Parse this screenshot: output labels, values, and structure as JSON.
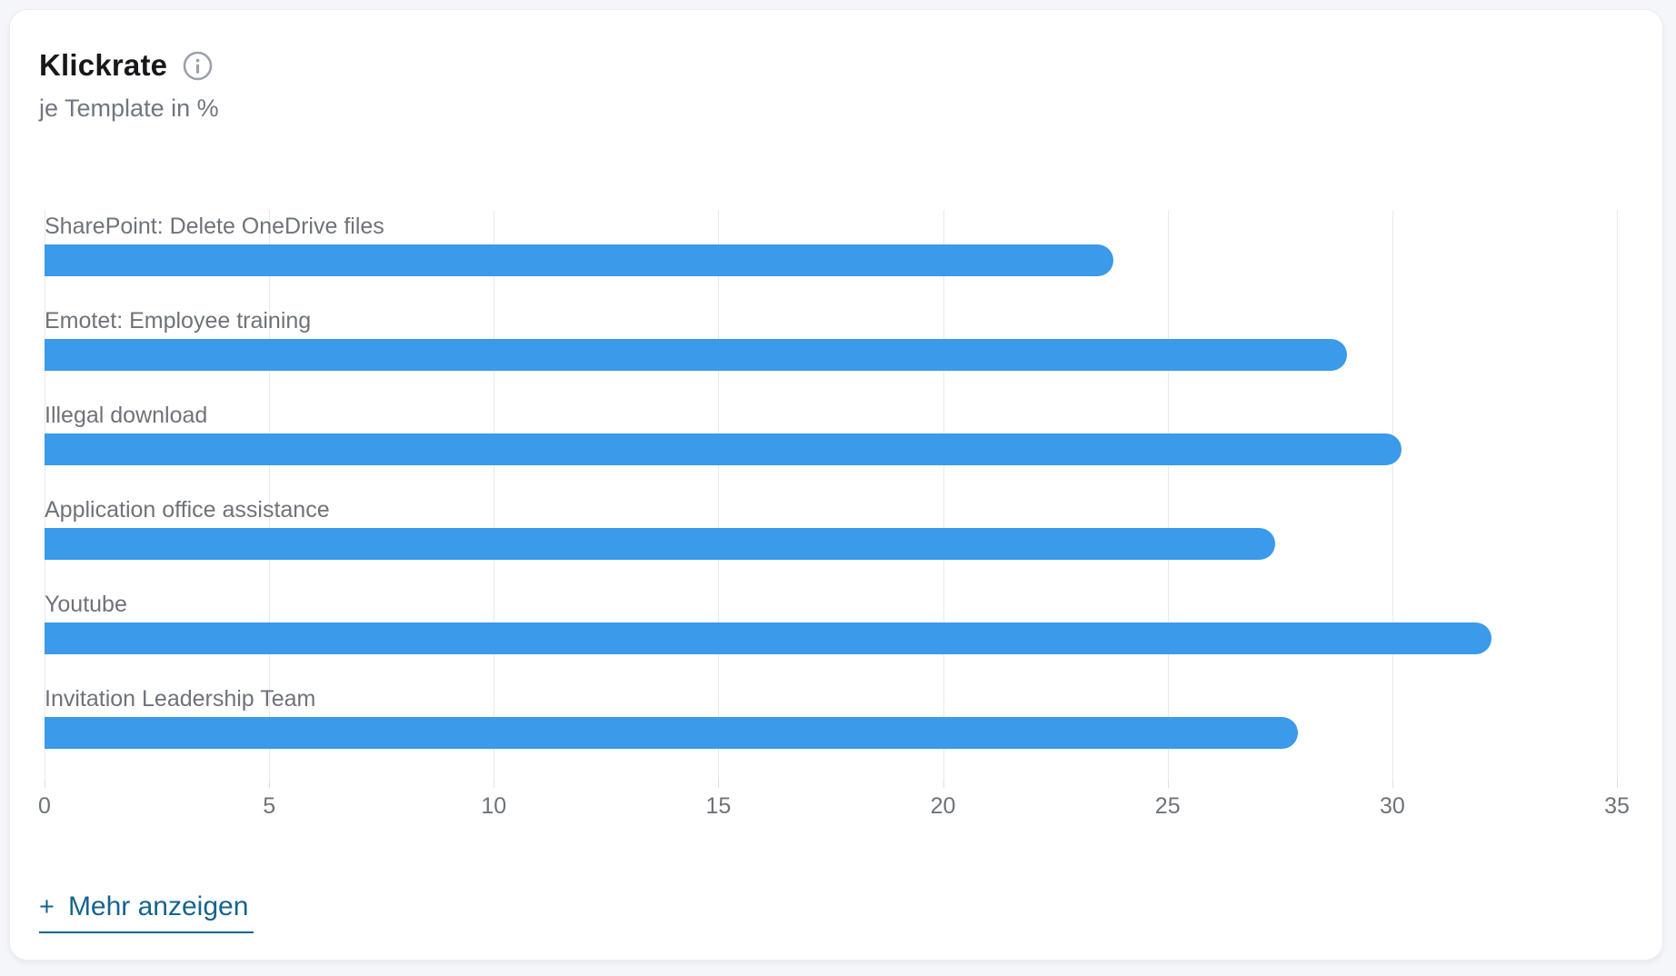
{
  "header": {
    "title": "Klickrate",
    "subtitle": "je Template in %",
    "info_icon": "info-icon"
  },
  "chart_data": {
    "type": "bar",
    "orientation": "horizontal",
    "title": "Klickrate",
    "subtitle": "je Template in %",
    "categories": [
      "SharePoint: Delete OneDrive files",
      "Emotet: Employee training",
      "Illegal download",
      "Application office assistance",
      "Youtube",
      "Invitation Leadership Team"
    ],
    "values": [
      23.8,
      29.0,
      30.2,
      27.4,
      32.2,
      27.9
    ],
    "xlabel": "",
    "ylabel": "",
    "xlim": [
      0,
      35
    ],
    "xticks": [
      0,
      5,
      10,
      15,
      20,
      25,
      30,
      35
    ],
    "grid": true,
    "legend": false,
    "bar_color": "#3B9AE9"
  },
  "footer": {
    "show_more_plus": "+",
    "show_more_label": "Mehr anzeigen"
  },
  "colors": {
    "bar": "#3B9AE9",
    "link": "#16638F",
    "title_text": "#17181B",
    "label_gray": "#6E7379",
    "gridline": "#E9E9EC",
    "card_background": "#FFFFFF",
    "page_background": "#F5F6F9",
    "info_icon_gray": "#9AA1AB"
  }
}
